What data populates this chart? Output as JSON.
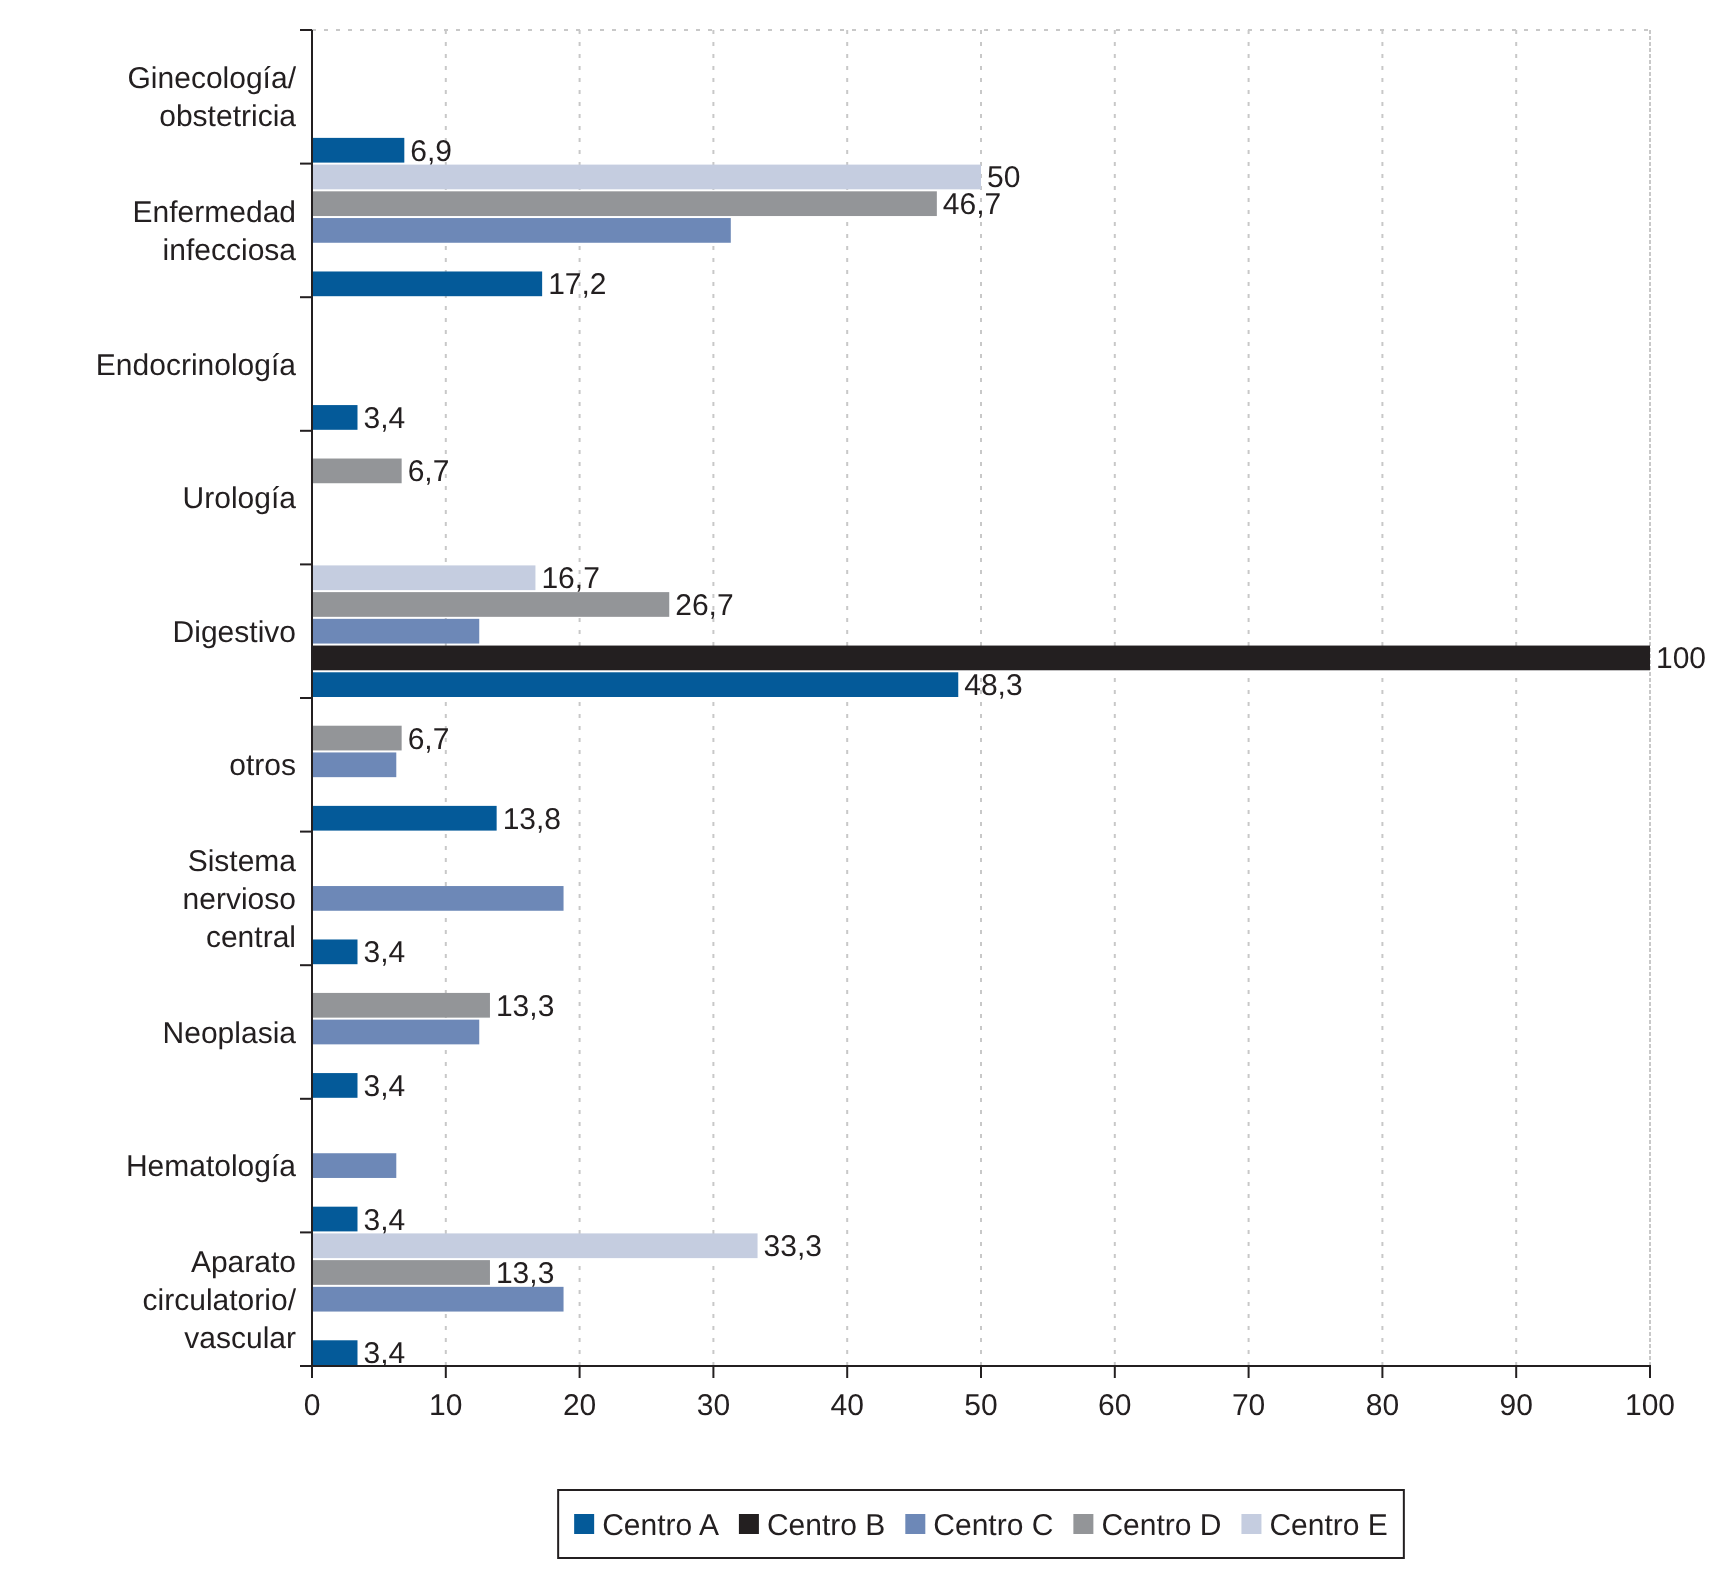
{
  "chart_data": {
    "type": "bar",
    "orientation": "horizontal",
    "categories": [
      "Ginecología/ obstetricia",
      "Enfermedad infecciosa",
      "Endocrinología",
      "Urología",
      "Digestivo",
      "otros",
      "Sistema nervioso central",
      "Neoplasia",
      "Hematología",
      "Aparato circulatorio/ vascular"
    ],
    "series": [
      {
        "name": "Centro A",
        "color": "#045a99",
        "values": [
          6.9,
          17.2,
          3.4,
          null,
          48.3,
          13.8,
          3.4,
          3.4,
          3.4,
          3.4
        ],
        "value_labels": [
          "6,9",
          "17,2",
          "3,4",
          null,
          "48,3",
          "13,8",
          "3,4",
          "3,4",
          "3,4",
          "3,4"
        ]
      },
      {
        "name": "Centro B",
        "color": "#231f20",
        "values": [
          null,
          null,
          null,
          null,
          100,
          null,
          null,
          null,
          null,
          null
        ],
        "value_labels": [
          null,
          null,
          null,
          null,
          "100",
          null,
          null,
          null,
          null,
          null
        ]
      },
      {
        "name": "Centro C",
        "color": "#6d88b7",
        "values": [
          null,
          31.3,
          null,
          null,
          12.5,
          6.3,
          18.8,
          12.5,
          6.3,
          18.8
        ],
        "value_labels": [
          null,
          null,
          null,
          null,
          null,
          null,
          null,
          null,
          null,
          null
        ]
      },
      {
        "name": "Centro D",
        "color": "#939598",
        "values": [
          null,
          46.7,
          null,
          6.7,
          26.7,
          6.7,
          null,
          13.3,
          null,
          13.3
        ],
        "value_labels": [
          null,
          "46,7",
          null,
          "6,7",
          "26,7",
          "6,7",
          null,
          "13,3",
          null,
          "13,3"
        ]
      },
      {
        "name": "Centro E",
        "color": "#c5cde0",
        "values": [
          null,
          50,
          null,
          null,
          16.7,
          null,
          null,
          null,
          null,
          33.3
        ],
        "value_labels": [
          null,
          "50",
          null,
          null,
          "16,7",
          null,
          null,
          null,
          null,
          "33,3"
        ]
      }
    ],
    "xlim": [
      0,
      100
    ],
    "xticks": [
      0,
      10,
      20,
      30,
      40,
      50,
      60,
      70,
      80,
      90,
      100
    ],
    "grid": "x",
    "legend": "bottom"
  }
}
